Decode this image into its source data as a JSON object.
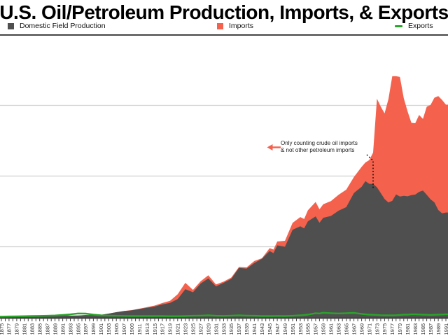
{
  "title": "U.S. Oil/Petroleum Production, Imports, & Exports",
  "legend": [
    {
      "label": "Domestic Field Production",
      "color": "#4f4f4f",
      "swatch": "square"
    },
    {
      "label": "Imports",
      "color": "#f4614c",
      "swatch": "square"
    },
    {
      "label": "Exports",
      "color": "#2aa42a",
      "swatch": "dash"
    }
  ],
  "annotation": {
    "line1": "Only counting crude oil imports",
    "line2": "& not other petroleum  imports",
    "arrow_color": "#f4614c",
    "leader_year": 1972
  },
  "colors": {
    "production_area": "#4f4f4f",
    "imports_area": "#f4614c",
    "exports_line": "#2aa42a",
    "gridline": "#d0d0d0",
    "plot_top_border": "#454545",
    "axis_line": "#3c3c3c",
    "tick": "#444444",
    "tick_label": "#333333",
    "background": "#ffffff"
  },
  "chart_data": {
    "type": "area",
    "stacked_note": "Imports area is stacked on top of Domestic Field Production; Exports is a line near zero",
    "title": "U.S. Oil/Petroleum Production, Imports, & Exports",
    "xlabel": "",
    "ylabel": "",
    "x_range": [
      1875,
      1991
    ],
    "ylim": [
      0,
      20
    ],
    "y_gridlines": [
      5,
      10,
      15
    ],
    "grid": "horizontal only, unlabeled",
    "legend_position": "top row",
    "axis_label_years": [
      1875,
      1877,
      1879,
      1881,
      1883,
      1885,
      1887,
      1889,
      1891,
      1893,
      1895,
      1897,
      1899,
      1901,
      1903,
      1905,
      1907,
      1909,
      1911,
      1913,
      1915,
      1917,
      1919,
      1921,
      1923,
      1925,
      1927,
      1929,
      1931,
      1933,
      1935,
      1937,
      1939,
      1941,
      1943,
      1945,
      1947,
      1949,
      1951,
      1953,
      1955,
      1957,
      1959,
      1961,
      1963,
      1965,
      1967,
      1969,
      1971,
      1973,
      1975,
      1977,
      1979,
      1981,
      1983,
      1985,
      1987,
      1989,
      1991
    ],
    "years": [
      1875,
      1877,
      1879,
      1881,
      1883,
      1885,
      1887,
      1889,
      1891,
      1893,
      1895,
      1897,
      1899,
      1901,
      1903,
      1905,
      1907,
      1909,
      1911,
      1913,
      1915,
      1917,
      1919,
      1921,
      1923,
      1925,
      1927,
      1929,
      1931,
      1933,
      1935,
      1937,
      1939,
      1941,
      1943,
      1945,
      1946,
      1947,
      1949,
      1951,
      1953,
      1954,
      1955,
      1957,
      1958,
      1959,
      1961,
      1963,
      1965,
      1967,
      1969,
      1970,
      1971,
      1972,
      1973,
      1974,
      1975,
      1976,
      1977,
      1978,
      1979,
      1980,
      1981,
      1982,
      1983,
      1984,
      1985,
      1986,
      1987,
      1988,
      1989,
      1990,
      1991
    ],
    "series": [
      {
        "name": "Domestic Field Production",
        "values": [
          0.03,
          0.04,
          0.05,
          0.08,
          0.07,
          0.06,
          0.08,
          0.1,
          0.15,
          0.13,
          0.14,
          0.17,
          0.16,
          0.19,
          0.27,
          0.37,
          0.45,
          0.5,
          0.6,
          0.68,
          0.77,
          0.92,
          1.03,
          1.3,
          2.0,
          1.78,
          2.4,
          2.76,
          2.2,
          2.45,
          2.73,
          3.5,
          3.45,
          3.85,
          4.15,
          4.7,
          4.55,
          5.1,
          5.0,
          6.2,
          6.45,
          6.3,
          6.8,
          7.15,
          6.7,
          7.05,
          7.18,
          7.55,
          7.8,
          8.8,
          9.24,
          9.64,
          9.45,
          9.44,
          9.21,
          8.8,
          8.37,
          8.13,
          8.25,
          8.7,
          8.55,
          8.6,
          8.57,
          8.65,
          8.69,
          8.88,
          8.97,
          8.68,
          8.35,
          8.14,
          7.6,
          7.36,
          7.42
        ]
      },
      {
        "name": "Imports",
        "values": [
          0,
          0,
          0,
          0,
          0,
          0,
          0,
          0,
          0,
          0,
          0,
          0,
          0,
          0,
          0,
          0,
          0.01,
          0.02,
          0.02,
          0.05,
          0.07,
          0.1,
          0.15,
          0.34,
          0.45,
          0.17,
          0.16,
          0.22,
          0.13,
          0.09,
          0.09,
          0.07,
          0.09,
          0.14,
          0.04,
          0.2,
          0.25,
          0.27,
          0.42,
          0.49,
          0.65,
          0.66,
          0.78,
          1.02,
          0.95,
          0.96,
          1.05,
          1.13,
          1.24,
          1.13,
          1.41,
          1.32,
          1.68,
          2.22,
          6.26,
          6.11,
          6.06,
          7.31,
          8.81,
          8.36,
          8.46,
          6.91,
          6.0,
          5.11,
          5.05,
          5.44,
          5.07,
          6.22,
          6.68,
          7.4,
          8.06,
          8.02,
          7.63
        ]
      },
      {
        "name": "Exports",
        "values": [
          0.06,
          0.07,
          0.08,
          0.09,
          0.1,
          0.11,
          0.12,
          0.14,
          0.18,
          0.22,
          0.28,
          0.27,
          0.2,
          0.15,
          0.13,
          0.12,
          0.11,
          0.1,
          0.1,
          0.1,
          0.1,
          0.1,
          0.09,
          0.09,
          0.1,
          0.12,
          0.13,
          0.15,
          0.12,
          0.11,
          0.13,
          0.15,
          0.13,
          0.12,
          0.1,
          0.1,
          0.1,
          0.11,
          0.1,
          0.12,
          0.15,
          0.17,
          0.2,
          0.3,
          0.28,
          0.33,
          0.3,
          0.28,
          0.3,
          0.32,
          0.25,
          0.22,
          0.2,
          0.19,
          0.18,
          0.16,
          0.15,
          0.15,
          0.15,
          0.16,
          0.18,
          0.2,
          0.2,
          0.22,
          0.22,
          0.21,
          0.2,
          0.19,
          0.18,
          0.19,
          0.2,
          0.21,
          0.22
        ]
      }
    ]
  }
}
